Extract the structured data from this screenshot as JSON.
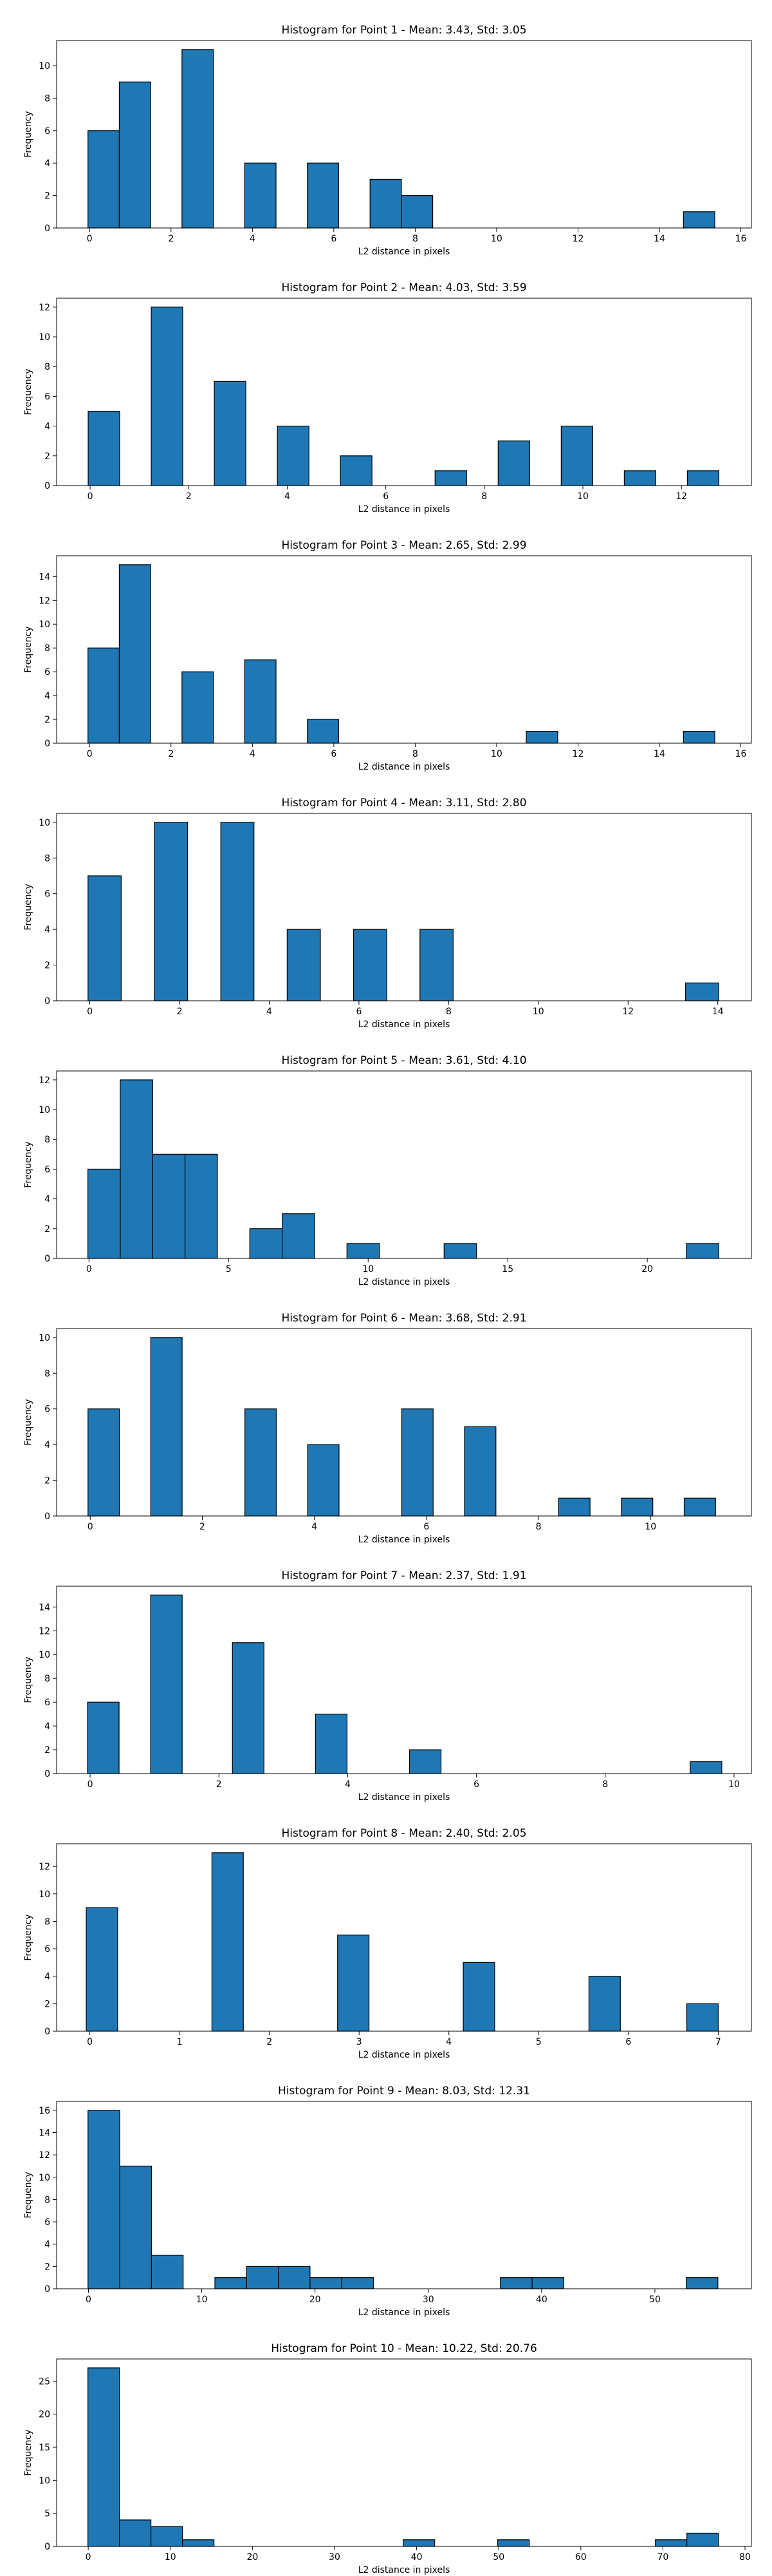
{
  "chart_data": [
    {
      "type": "bar",
      "title": "Histogram for Point 1 - Mean: 3.43, Std: 3.05",
      "xlabel": "L2 distance in pixels",
      "ylabel": "Frequency",
      "xlim": [
        -0.81,
        16.26
      ],
      "ylim": [
        0,
        11.55
      ],
      "xticks": [
        0,
        2,
        4,
        6,
        8,
        10,
        12,
        14,
        16
      ],
      "yticks": [
        0,
        2,
        4,
        6,
        8,
        10
      ],
      "bins": [
        {
          "x0": -0.04,
          "x1": 0.73,
          "y": 6
        },
        {
          "x0": 0.73,
          "x1": 1.5,
          "y": 9
        },
        {
          "x0": 2.27,
          "x1": 3.04,
          "y": 11
        },
        {
          "x0": 3.81,
          "x1": 4.58,
          "y": 4
        },
        {
          "x0": 5.35,
          "x1": 6.12,
          "y": 4
        },
        {
          "x0": 6.89,
          "x1": 7.66,
          "y": 3
        },
        {
          "x0": 7.66,
          "x1": 8.43,
          "y": 2
        },
        {
          "x0": 14.59,
          "x1": 15.36,
          "y": 1
        }
      ]
    },
    {
      "type": "bar",
      "title": "Histogram for Point 2 - Mean: 4.03, Std: 3.59",
      "xlabel": "L2 distance in pixels",
      "ylabel": "Frequency",
      "xlim": [
        -0.68,
        13.42
      ],
      "ylim": [
        0,
        12.6
      ],
      "xticks": [
        0,
        2,
        4,
        6,
        8,
        10,
        12
      ],
      "yticks": [
        0,
        2,
        4,
        6,
        8,
        10,
        12
      ],
      "bins": [
        {
          "x0": -0.04,
          "x1": 0.6,
          "y": 5
        },
        {
          "x0": 1.24,
          "x1": 1.88,
          "y": 12
        },
        {
          "x0": 2.52,
          "x1": 3.16,
          "y": 7
        },
        {
          "x0": 3.8,
          "x1": 4.44,
          "y": 4
        },
        {
          "x0": 5.08,
          "x1": 5.72,
          "y": 2
        },
        {
          "x0": 7.0,
          "x1": 7.64,
          "y": 1
        },
        {
          "x0": 8.28,
          "x1": 8.92,
          "y": 3
        },
        {
          "x0": 9.56,
          "x1": 10.2,
          "y": 4
        },
        {
          "x0": 10.84,
          "x1": 11.48,
          "y": 1
        },
        {
          "x0": 12.12,
          "x1": 12.76,
          "y": 1
        }
      ]
    },
    {
      "type": "bar",
      "title": "Histogram for Point 3 - Mean: 2.65, Std: 2.99",
      "xlabel": "L2 distance in pixels",
      "ylabel": "Frequency",
      "xlim": [
        -0.81,
        16.26
      ],
      "ylim": [
        0,
        15.75
      ],
      "xticks": [
        0,
        2,
        4,
        6,
        8,
        10,
        12,
        14,
        16
      ],
      "yticks": [
        0,
        2,
        4,
        6,
        8,
        10,
        12,
        14
      ],
      "bins": [
        {
          "x0": -0.04,
          "x1": 0.73,
          "y": 8
        },
        {
          "x0": 0.73,
          "x1": 1.5,
          "y": 15
        },
        {
          "x0": 2.27,
          "x1": 3.04,
          "y": 6
        },
        {
          "x0": 3.81,
          "x1": 4.58,
          "y": 7
        },
        {
          "x0": 5.35,
          "x1": 6.12,
          "y": 2
        },
        {
          "x0": 10.73,
          "x1": 11.5,
          "y": 1
        },
        {
          "x0": 14.59,
          "x1": 15.36,
          "y": 1
        }
      ]
    },
    {
      "type": "bar",
      "title": "Histogram for Point 4 - Mean: 3.11, Std: 2.80",
      "xlabel": "L2 distance in pixels",
      "ylabel": "Frequency",
      "xlim": [
        -0.74,
        14.75
      ],
      "ylim": [
        0,
        10.5
      ],
      "xticks": [
        0,
        2,
        4,
        6,
        8,
        10,
        12,
        14
      ],
      "yticks": [
        0,
        2,
        4,
        6,
        8,
        10
      ],
      "bins": [
        {
          "x0": -0.04,
          "x1": 0.7,
          "y": 7
        },
        {
          "x0": 1.44,
          "x1": 2.18,
          "y": 10
        },
        {
          "x0": 2.92,
          "x1": 3.66,
          "y": 10
        },
        {
          "x0": 4.4,
          "x1": 5.14,
          "y": 4
        },
        {
          "x0": 5.88,
          "x1": 6.62,
          "y": 4
        },
        {
          "x0": 7.36,
          "x1": 8.1,
          "y": 4
        },
        {
          "x0": 13.28,
          "x1": 14.02,
          "y": 1
        }
      ]
    },
    {
      "type": "bar",
      "title": "Histogram for Point 5 - Mean: 3.61, Std: 4.10",
      "xlabel": "L2 distance in pixels",
      "ylabel": "Frequency",
      "xlim": [
        -1.16,
        23.73
      ],
      "ylim": [
        0,
        12.6
      ],
      "xticks": [
        0,
        5,
        10,
        15,
        20
      ],
      "yticks": [
        0,
        2,
        4,
        6,
        8,
        10,
        12
      ],
      "bins": [
        {
          "x0": -0.04,
          "x1": 1.12,
          "y": 6
        },
        {
          "x0": 1.12,
          "x1": 2.28,
          "y": 12
        },
        {
          "x0": 2.28,
          "x1": 3.44,
          "y": 7
        },
        {
          "x0": 3.44,
          "x1": 4.6,
          "y": 7
        },
        {
          "x0": 5.76,
          "x1": 6.92,
          "y": 2
        },
        {
          "x0": 6.92,
          "x1": 8.08,
          "y": 3
        },
        {
          "x0": 9.24,
          "x1": 10.4,
          "y": 1
        },
        {
          "x0": 12.72,
          "x1": 13.88,
          "y": 1
        },
        {
          "x0": 21.4,
          "x1": 22.56,
          "y": 1
        }
      ]
    },
    {
      "type": "bar",
      "title": "Histogram for Point 6 - Mean: 3.68, Std: 2.91",
      "xlabel": "L2 distance in pixels",
      "ylabel": "Frequency",
      "xlim": [
        -0.6,
        11.8
      ],
      "ylim": [
        0,
        10.5
      ],
      "xticks": [
        0,
        2,
        4,
        6,
        8,
        10
      ],
      "yticks": [
        0,
        2,
        4,
        6,
        8,
        10
      ],
      "bins": [
        {
          "x0": -0.04,
          "x1": 0.52,
          "y": 6
        },
        {
          "x0": 1.08,
          "x1": 1.64,
          "y": 10
        },
        {
          "x0": 2.76,
          "x1": 3.32,
          "y": 6
        },
        {
          "x0": 3.88,
          "x1": 4.44,
          "y": 4
        },
        {
          "x0": 5.56,
          "x1": 6.12,
          "y": 6
        },
        {
          "x0": 6.68,
          "x1": 7.24,
          "y": 5
        },
        {
          "x0": 8.36,
          "x1": 8.92,
          "y": 1
        },
        {
          "x0": 9.48,
          "x1": 10.04,
          "y": 1
        },
        {
          "x0": 10.6,
          "x1": 11.16,
          "y": 1
        }
      ]
    },
    {
      "type": "bar",
      "title": "Histogram for Point 7 - Mean: 2.37, Std: 1.91",
      "xlabel": "L2 distance in pixels",
      "ylabel": "Frequency",
      "xlim": [
        -0.52,
        10.27
      ],
      "ylim": [
        0,
        15.75
      ],
      "xticks": [
        0,
        2,
        4,
        6,
        8,
        10
      ],
      "yticks": [
        0,
        2,
        4,
        6,
        8,
        10,
        12,
        14
      ],
      "bins": [
        {
          "x0": -0.04,
          "x1": 0.45,
          "y": 6
        },
        {
          "x0": 0.94,
          "x1": 1.43,
          "y": 15
        },
        {
          "x0": 2.21,
          "x1": 2.7,
          "y": 11
        },
        {
          "x0": 3.5,
          "x1": 3.99,
          "y": 5
        },
        {
          "x0": 4.96,
          "x1": 5.45,
          "y": 2
        },
        {
          "x0": 9.32,
          "x1": 9.81,
          "y": 1
        }
      ]
    },
    {
      "type": "bar",
      "title": "Histogram for Point 8 - Mean: 2.40, Std: 2.05",
      "xlabel": "L2 distance in pixels",
      "ylabel": "Frequency",
      "xlim": [
        -0.37,
        7.37
      ],
      "ylim": [
        0,
        13.65
      ],
      "xticks": [
        0,
        1,
        2,
        3,
        4,
        5,
        6,
        7
      ],
      "yticks": [
        0,
        2,
        4,
        6,
        8,
        10,
        12
      ],
      "bins": [
        {
          "x0": -0.04,
          "x1": 0.31,
          "y": 9
        },
        {
          "x0": 1.36,
          "x1": 1.71,
          "y": 13
        },
        {
          "x0": 2.76,
          "x1": 3.11,
          "y": 7
        },
        {
          "x0": 4.16,
          "x1": 4.51,
          "y": 5
        },
        {
          "x0": 5.56,
          "x1": 5.91,
          "y": 4
        },
        {
          "x0": 6.65,
          "x1": 7.0,
          "y": 2
        }
      ]
    },
    {
      "type": "bar",
      "title": "Histogram for Point 9 - Mean: 8.03, Std: 12.31",
      "xlabel": "L2 distance in pixels",
      "ylabel": "Frequency",
      "xlim": [
        -2.81,
        58.52
      ],
      "ylim": [
        0,
        16.8
      ],
      "xticks": [
        0,
        10,
        20,
        30,
        40,
        50
      ],
      "yticks": [
        0,
        2,
        4,
        6,
        8,
        10,
        12,
        14,
        16
      ],
      "bins": [
        {
          "x0": -0.04,
          "x1": 2.76,
          "y": 16
        },
        {
          "x0": 2.76,
          "x1": 5.56,
          "y": 11
        },
        {
          "x0": 5.56,
          "x1": 8.36,
          "y": 3
        },
        {
          "x0": 11.16,
          "x1": 13.96,
          "y": 1
        },
        {
          "x0": 13.96,
          "x1": 16.76,
          "y": 2
        },
        {
          "x0": 16.76,
          "x1": 19.56,
          "y": 2
        },
        {
          "x0": 19.56,
          "x1": 22.36,
          "y": 1
        },
        {
          "x0": 22.36,
          "x1": 25.16,
          "y": 1
        },
        {
          "x0": 36.36,
          "x1": 39.16,
          "y": 1
        },
        {
          "x0": 39.16,
          "x1": 41.96,
          "y": 1
        },
        {
          "x0": 52.76,
          "x1": 55.56,
          "y": 1
        }
      ]
    },
    {
      "type": "bar",
      "title": "Histogram for Point 10 - Mean: 10.22, Std: 20.76",
      "xlabel": "L2 distance in pixels",
      "ylabel": "Frequency",
      "xlim": [
        -3.85,
        80.78
      ],
      "ylim": [
        0,
        28.35
      ],
      "xticks": [
        0,
        10,
        20,
        30,
        40,
        50,
        60,
        70,
        80
      ],
      "yticks": [
        0,
        5,
        10,
        15,
        20,
        25
      ],
      "bins": [
        {
          "x0": -0.04,
          "x1": 3.8,
          "y": 27
        },
        {
          "x0": 3.8,
          "x1": 7.64,
          "y": 4
        },
        {
          "x0": 7.64,
          "x1": 11.48,
          "y": 3
        },
        {
          "x0": 11.48,
          "x1": 15.32,
          "y": 1
        },
        {
          "x0": 38.36,
          "x1": 42.2,
          "y": 1
        },
        {
          "x0": 49.88,
          "x1": 53.72,
          "y": 1
        },
        {
          "x0": 69.08,
          "x1": 72.92,
          "y": 1
        },
        {
          "x0": 72.92,
          "x1": 76.76,
          "y": 2
        }
      ]
    }
  ]
}
